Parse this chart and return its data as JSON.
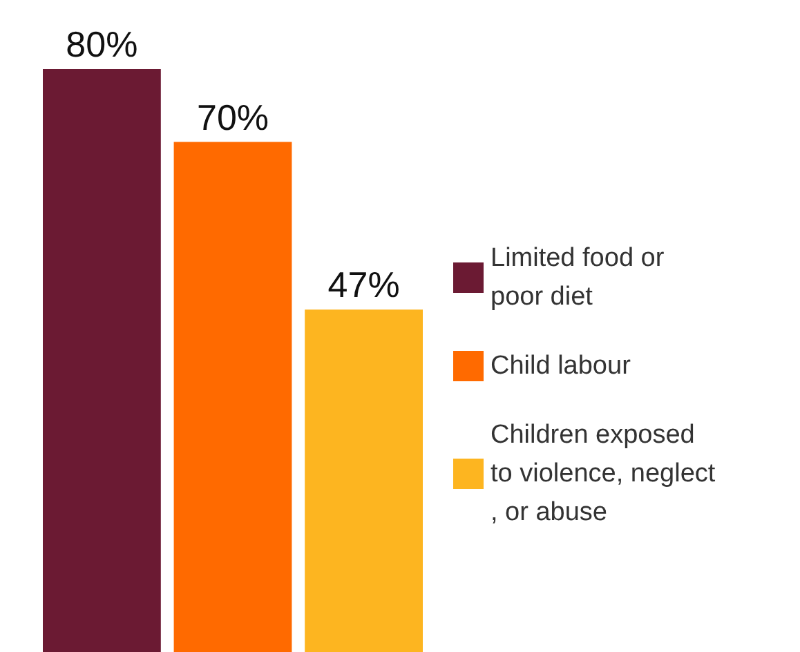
{
  "chart_data": {
    "type": "bar",
    "categories": [
      null
    ],
    "series": [
      {
        "name": "Limited food or poor diet",
        "color": "#6b1a33",
        "values": [
          80
        ],
        "value_labels": [
          "80%"
        ]
      },
      {
        "name": "Child labour",
        "color": "#ff6a00",
        "values": [
          70
        ],
        "value_labels": [
          "70%"
        ]
      },
      {
        "name": "Children exposed to violence, neglect, or abuse",
        "color": "#fdb520",
        "values": [
          47
        ],
        "value_labels": [
          "47%"
        ]
      }
    ],
    "legend": "right",
    "grid": false
  }
}
